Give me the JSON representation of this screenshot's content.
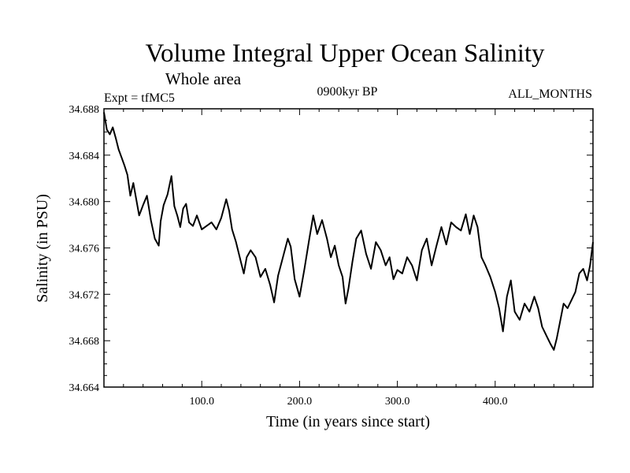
{
  "chart_data": {
    "type": "line",
    "title": "Volume Integral Upper Ocean Salinity",
    "subtitle": "Whole area",
    "experiment_label": "Expt = tfMC5",
    "period_label": "0900kyr BP",
    "months_label": "ALL_MONTHS",
    "xlabel": "Time (in years since start)",
    "ylabel": "Salinity (in PSU)",
    "xlim": [
      0,
      500
    ],
    "ylim": [
      34.664,
      34.688
    ],
    "x_ticks": [
      100,
      200,
      300,
      400
    ],
    "x_tick_labels": [
      "100.0",
      "200.0",
      "300.0",
      "400.0"
    ],
    "y_ticks": [
      34.664,
      34.668,
      34.672,
      34.676,
      34.68,
      34.684,
      34.688
    ],
    "y_tick_labels": [
      "34.664",
      "34.668",
      "34.672",
      "34.676",
      "34.680",
      "34.684",
      "34.688"
    ],
    "series": [
      {
        "name": "Salinity",
        "x": [
          0,
          3,
          6,
          9,
          12,
          15,
          18,
          21,
          24,
          27,
          30,
          33,
          36,
          40,
          44,
          48,
          52,
          56,
          58,
          61,
          65,
          69,
          72,
          75,
          78,
          81,
          84,
          87,
          91,
          95,
          100,
          105,
          110,
          115,
          120,
          125,
          128,
          131,
          135,
          140,
          143,
          146,
          150,
          155,
          160,
          165,
          170,
          174,
          178,
          183,
          188,
          191,
          195,
          200,
          205,
          210,
          214,
          218,
          223,
          228,
          232,
          236,
          240,
          244,
          247,
          250,
          254,
          258,
          263,
          268,
          273,
          278,
          283,
          288,
          292,
          296,
          300,
          305,
          310,
          315,
          320,
          325,
          330,
          335,
          340,
          345,
          350,
          355,
          360,
          365,
          370,
          374,
          378,
          382,
          386,
          390,
          395,
          400,
          404,
          408,
          412,
          416,
          420,
          425,
          430,
          435,
          440,
          444,
          448,
          452,
          456,
          460,
          463,
          466,
          470,
          474,
          478,
          482,
          486,
          490,
          494,
          497,
          500
        ],
        "values": [
          34.6877,
          34.6862,
          34.6858,
          34.6864,
          34.6855,
          34.6845,
          34.6838,
          34.6831,
          34.6823,
          34.6805,
          34.6816,
          34.6802,
          34.6788,
          34.6797,
          34.6805,
          34.6784,
          34.6768,
          34.6762,
          34.6783,
          34.6797,
          34.6806,
          34.6822,
          34.6796,
          34.6788,
          34.6778,
          34.6794,
          34.6798,
          34.6782,
          34.6779,
          34.6788,
          34.6776,
          34.6779,
          34.6782,
          34.6776,
          34.6786,
          34.6802,
          34.6792,
          34.6776,
          34.6765,
          34.6748,
          34.6738,
          34.6752,
          34.6758,
          34.6752,
          34.6735,
          34.6742,
          34.6728,
          34.6713,
          34.6736,
          34.6752,
          34.6768,
          34.6761,
          34.6733,
          34.6718,
          34.6742,
          34.6768,
          34.6788,
          34.6772,
          34.6784,
          34.6768,
          34.6752,
          34.6762,
          34.6745,
          34.6735,
          34.6712,
          34.6725,
          34.6748,
          34.6768,
          34.6775,
          34.6755,
          34.6742,
          34.6765,
          34.6758,
          34.6745,
          34.6752,
          34.6733,
          34.6741,
          34.6738,
          34.6752,
          34.6745,
          34.6732,
          34.6758,
          34.6768,
          34.6745,
          34.6762,
          34.6778,
          34.6763,
          34.6782,
          34.6778,
          34.6775,
          34.6789,
          34.6772,
          34.6788,
          34.6778,
          34.6752,
          34.6745,
          34.6735,
          34.6722,
          34.6708,
          34.6688,
          34.6718,
          34.6732,
          34.6705,
          34.6698,
          34.6712,
          34.6705,
          34.6718,
          34.6708,
          34.6692,
          34.6685,
          34.6678,
          34.6672,
          34.6682,
          34.6695,
          34.6712,
          34.6708,
          34.6715,
          34.6722,
          34.6738,
          34.6742,
          34.6732,
          34.6745,
          34.6765
        ]
      }
    ]
  }
}
